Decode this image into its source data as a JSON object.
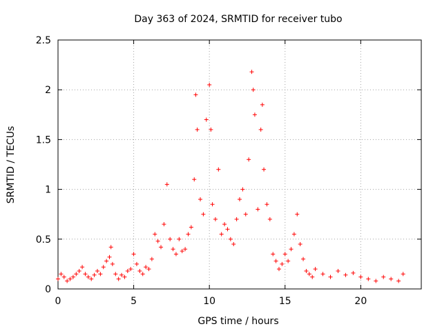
{
  "chart_data": {
    "type": "scatter",
    "title": "Day 363 of 2024, SRMTID for receiver tubo",
    "xlabel": "GPS time / hours",
    "ylabel": "SRMTID / TECUs",
    "xlim": [
      0,
      24
    ],
    "ylim": [
      0,
      2.5
    ],
    "x_ticks": [
      0,
      5,
      10,
      15,
      20
    ],
    "y_ticks": [
      0,
      0.5,
      1,
      1.5,
      2,
      2.5
    ],
    "x_tick_labels": [
      "0",
      "5",
      "10",
      "15",
      "20"
    ],
    "y_tick_labels": [
      "0",
      "0.5",
      "1",
      "1.5",
      "2",
      "2.5"
    ],
    "grid": true,
    "marker": "+",
    "series": [
      {
        "name": "SRMTID",
        "color": "#ff0000",
        "x": [
          0.0,
          0.2,
          0.4,
          0.6,
          0.8,
          1.0,
          1.2,
          1.4,
          1.6,
          1.8,
          2.0,
          2.2,
          2.4,
          2.6,
          2.8,
          3.0,
          3.2,
          3.4,
          3.5,
          3.6,
          3.8,
          4.0,
          4.2,
          4.4,
          4.6,
          4.8,
          5.0,
          5.2,
          5.4,
          5.6,
          5.8,
          6.0,
          6.2,
          6.4,
          6.6,
          6.8,
          7.0,
          7.2,
          7.4,
          7.6,
          7.8,
          8.0,
          8.2,
          8.4,
          8.6,
          8.8,
          9.0,
          9.1,
          9.2,
          9.4,
          9.6,
          9.8,
          10.0,
          10.1,
          10.2,
          10.4,
          10.6,
          10.8,
          11.0,
          11.2,
          11.4,
          11.6,
          11.8,
          12.0,
          12.2,
          12.4,
          12.6,
          12.8,
          12.9,
          13.0,
          13.2,
          13.4,
          13.5,
          13.6,
          13.8,
          14.0,
          14.2,
          14.4,
          14.6,
          14.8,
          15.0,
          15.2,
          15.4,
          15.6,
          15.8,
          16.0,
          16.2,
          16.4,
          16.6,
          16.8,
          17.0,
          17.5,
          18.0,
          18.5,
          19.0,
          19.5,
          20.0,
          20.5,
          21.0,
          21.5,
          22.0,
          22.5,
          22.8
        ],
        "y": [
          0.1,
          0.15,
          0.12,
          0.08,
          0.1,
          0.12,
          0.15,
          0.18,
          0.22,
          0.15,
          0.12,
          0.1,
          0.14,
          0.18,
          0.15,
          0.22,
          0.28,
          0.32,
          0.42,
          0.25,
          0.15,
          0.1,
          0.14,
          0.12,
          0.18,
          0.2,
          0.35,
          0.25,
          0.18,
          0.15,
          0.22,
          0.2,
          0.3,
          0.55,
          0.48,
          0.42,
          0.65,
          1.05,
          0.5,
          0.4,
          0.35,
          0.5,
          0.38,
          0.4,
          0.55,
          0.62,
          1.1,
          1.95,
          1.6,
          0.9,
          0.75,
          1.7,
          2.05,
          1.6,
          0.85,
          0.7,
          1.2,
          0.55,
          0.65,
          0.6,
          0.5,
          0.45,
          0.7,
          0.9,
          1.0,
          0.75,
          1.3,
          2.18,
          2.0,
          1.75,
          0.8,
          1.6,
          1.85,
          1.2,
          0.85,
          0.7,
          0.35,
          0.28,
          0.2,
          0.25,
          0.35,
          0.28,
          0.4,
          0.55,
          0.75,
          0.45,
          0.3,
          0.18,
          0.15,
          0.12,
          0.2,
          0.15,
          0.12,
          0.18,
          0.14,
          0.16,
          0.12,
          0.1,
          0.08,
          0.12,
          0.1,
          0.08,
          0.15
        ]
      }
    ]
  }
}
